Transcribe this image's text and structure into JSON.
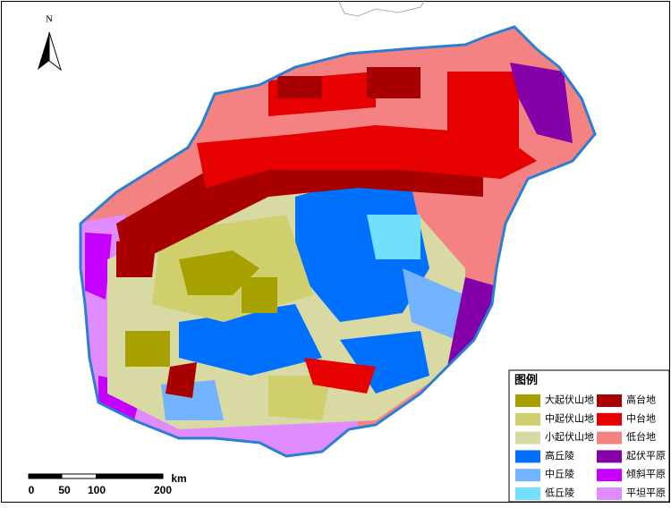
{
  "north_label": "N",
  "legend": {
    "title": "图例",
    "items": [
      {
        "label": "大起伏山地",
        "color": "#a6a000"
      },
      {
        "label": "中起伏山地",
        "color": "#cfcf6e"
      },
      {
        "label": "小起伏山地",
        "color": "#d9d9a3"
      },
      {
        "label": "高丘陵",
        "color": "#0070ff"
      },
      {
        "label": "中丘陵",
        "color": "#73b2ff"
      },
      {
        "label": "低丘陵",
        "color": "#73dfff"
      },
      {
        "label": "高台地",
        "color": "#a80000"
      },
      {
        "label": "中台地",
        "color": "#e60000"
      },
      {
        "label": "低台地",
        "color": "#f58282"
      },
      {
        "label": "起伏平原",
        "color": "#8400a8"
      },
      {
        "label": "倾斜平原",
        "color": "#c500ff"
      },
      {
        "label": "平坦平原",
        "color": "#e08cff"
      }
    ]
  },
  "scale_bar": {
    "labels": [
      0,
      50,
      100,
      200
    ],
    "unit": "km"
  }
}
